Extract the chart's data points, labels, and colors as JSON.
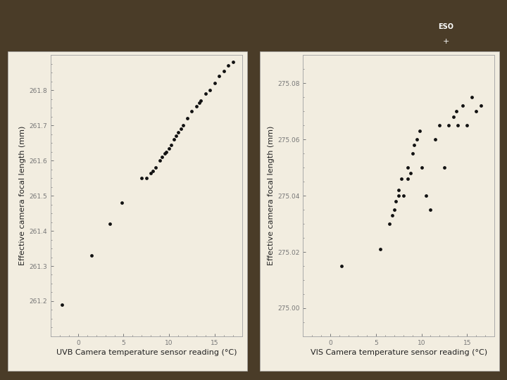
{
  "uvb_x": [
    -1.8,
    1.5,
    3.5,
    4.8,
    7.0,
    7.5,
    8.0,
    8.2,
    8.5,
    9.0,
    9.2,
    9.5,
    9.7,
    10.0,
    10.2,
    10.5,
    10.8,
    11.0,
    11.3,
    11.5,
    12.0,
    12.5,
    13.0,
    13.3,
    13.5,
    14.0,
    14.5,
    15.0,
    15.5,
    16.0,
    16.5,
    17.0
  ],
  "uvb_y": [
    261.19,
    261.33,
    261.42,
    261.48,
    261.55,
    261.55,
    261.565,
    261.57,
    261.58,
    261.6,
    261.61,
    261.62,
    261.625,
    261.635,
    261.645,
    261.66,
    261.67,
    261.68,
    261.69,
    261.7,
    261.72,
    261.74,
    261.755,
    261.765,
    261.77,
    261.79,
    261.8,
    261.82,
    261.84,
    261.855,
    261.87,
    261.88
  ],
  "vis_x": [
    1.2,
    5.5,
    6.5,
    6.8,
    7.0,
    7.2,
    7.5,
    7.5,
    7.8,
    8.0,
    8.5,
    8.5,
    8.8,
    9.0,
    9.2,
    9.5,
    9.8,
    10.0,
    10.5,
    11.0,
    11.5,
    12.0,
    12.5,
    13.0,
    13.5,
    13.8,
    14.0,
    14.5,
    15.0,
    15.5,
    16.0,
    16.5
  ],
  "vis_y": [
    275.015,
    275.021,
    275.03,
    275.033,
    275.035,
    275.038,
    275.04,
    275.042,
    275.046,
    275.04,
    275.046,
    275.05,
    275.048,
    275.055,
    275.058,
    275.06,
    275.063,
    275.05,
    275.04,
    275.035,
    275.06,
    275.065,
    275.05,
    275.065,
    275.068,
    275.07,
    275.065,
    275.072,
    275.065,
    275.075,
    275.07,
    275.072
  ],
  "uvb_xlim": [
    -3,
    18
  ],
  "uvb_ylim": [
    261.1,
    261.9
  ],
  "vis_xlim": [
    -3,
    18
  ],
  "vis_ylim": [
    274.99,
    275.09
  ],
  "uvb_yticks": [
    261.2,
    261.3,
    261.4,
    261.5,
    261.6,
    261.7,
    261.8
  ],
  "vis_yticks": [
    275.0,
    275.02,
    275.04,
    275.06,
    275.08
  ],
  "uvb_xticks": [
    0,
    5,
    10,
    15
  ],
  "vis_xticks": [
    0,
    5,
    10,
    15
  ],
  "uvb_xlabel": "UVB Camera temperature sensor reading (°C)",
  "vis_xlabel": "VIS Camera temperature sensor reading (°C)",
  "ylabel": "Effective camera focal length (mm)",
  "bg_outer": "#4a3c28",
  "bg_plot": "#f2ede0",
  "dot_color": "#111111",
  "dot_size": 6,
  "tick_color": "#777777",
  "label_color": "#222222",
  "spine_color": "#aaaaaa",
  "axis_label_fontsize": 8.0,
  "tick_fontsize": 6.5
}
